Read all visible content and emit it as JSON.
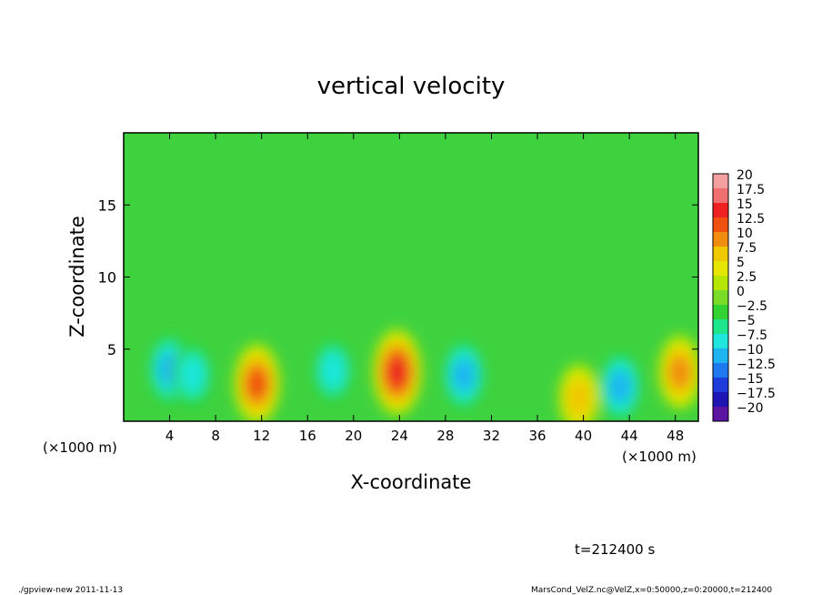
{
  "chart_data": {
    "type": "heatmap",
    "title": "vertical velocity",
    "xlabel": "X-coordinate",
    "ylabel": "Z-coordinate",
    "x_units_left": "(×1000 m)",
    "x_units_right": "(×1000 m)",
    "xlim": [
      0,
      50
    ],
    "ylim": [
      0,
      20
    ],
    "x_ticks": [
      4,
      8,
      12,
      16,
      20,
      24,
      28,
      32,
      36,
      40,
      44,
      48
    ],
    "x_tick_labels": [
      "4",
      "8",
      "12",
      "16",
      "20",
      "24",
      "28",
      "32",
      "36",
      "40",
      "44",
      "48"
    ],
    "y_ticks": [
      5,
      10,
      15
    ],
    "y_tick_labels": [
      "5",
      "10",
      "15"
    ],
    "background_value": 0,
    "colorbar": {
      "labels": [
        "20",
        "17.5",
        "15",
        "12.5",
        "10",
        "7.5",
        "5",
        "2.5",
        "0",
        "−2.5",
        "−5",
        "−7.5",
        "−10",
        "−12.5",
        "−15",
        "−17.5",
        "−20"
      ],
      "colors": [
        "#f4a0a0",
        "#f07070",
        "#ee2020",
        "#f05010",
        "#f08c10",
        "#f0c800",
        "#e6e600",
        "#b4e600",
        "#78dc28",
        "#32d232",
        "#1ee68c",
        "#1ee6dc",
        "#1eb4f0",
        "#1e78f0",
        "#1e3cdc",
        "#1e14b4",
        "#5a14a0"
      ]
    },
    "features": [
      {
        "x": 4.0,
        "z": 3.6,
        "value": -10
      },
      {
        "x": 6.0,
        "z": 3.2,
        "value": -7.5
      },
      {
        "x": 11.6,
        "z": 2.6,
        "value": 12.5
      },
      {
        "x": 18.2,
        "z": 3.5,
        "value": -7.5
      },
      {
        "x": 23.8,
        "z": 3.4,
        "value": 15
      },
      {
        "x": 29.6,
        "z": 3.2,
        "value": -10
      },
      {
        "x": 39.6,
        "z": 1.6,
        "value": 7.5
      },
      {
        "x": 43.2,
        "z": 2.4,
        "value": -10
      },
      {
        "x": 48.4,
        "z": 3.4,
        "value": 10
      }
    ]
  },
  "footer": {
    "time_label": "t=212400 s",
    "program": "./gpview-new  2011-11-13",
    "source": "MarsCond_VelZ.nc@VelZ,x=0:50000,z=0:20000,t=212400"
  }
}
